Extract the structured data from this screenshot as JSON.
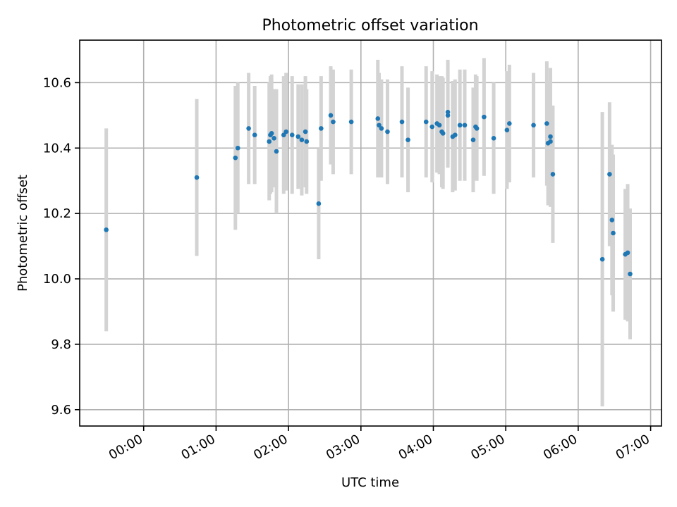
{
  "chart_data": {
    "type": "scatter",
    "title": "Photometric offset variation",
    "xlabel": "UTC time",
    "ylabel": "Photometric offset",
    "x_axis_type": "time",
    "xlim": [
      "23:07",
      "07:09"
    ],
    "ylim": [
      9.55,
      10.73
    ],
    "xticks": [
      "00:00",
      "01:00",
      "02:00",
      "03:00",
      "04:00",
      "05:00",
      "06:00",
      "07:00"
    ],
    "yticks": [
      9.6,
      9.8,
      10.0,
      10.2,
      10.4,
      10.6
    ],
    "ytick_labels": [
      "9.6",
      "9.8",
      "10.0",
      "10.2",
      "10.4",
      "10.6"
    ],
    "grid": true,
    "point_color": "#1f77b4",
    "errorbar_color": "#d3d3d3",
    "series": [
      {
        "x": [
          "23:29",
          "00:44",
          "01:16",
          "01:18",
          "01:27",
          "01:32",
          "01:44",
          "01:45",
          "01:46",
          "01:48",
          "01:50",
          "01:56",
          "01:58",
          "02:03",
          "02:08",
          "02:11",
          "02:14",
          "02:15",
          "02:25",
          "02:27",
          "02:35",
          "02:37",
          "02:52",
          "03:14",
          "03:15",
          "03:17",
          "03:22",
          "03:34",
          "03:39",
          "03:54",
          "03:59",
          "04:03",
          "04:05",
          "04:07",
          "04:08",
          "04:12",
          "04:12",
          "04:16",
          "04:18",
          "04:22",
          "04:26",
          "04:33",
          "04:35",
          "04:36",
          "04:42",
          "04:50",
          "05:01",
          "05:03",
          "05:23",
          "05:34",
          "05:35",
          "05:37",
          "05:37",
          "05:39",
          "06:20",
          "06:26",
          "06:28",
          "06:29",
          "06:39",
          "06:41",
          "06:43"
        ],
        "y": [
          10.15,
          10.31,
          10.37,
          10.4,
          10.46,
          10.44,
          10.42,
          10.44,
          10.445,
          10.43,
          10.39,
          10.44,
          10.45,
          10.44,
          10.435,
          10.425,
          10.45,
          10.42,
          10.23,
          10.46,
          10.5,
          10.48,
          10.48,
          10.49,
          10.47,
          10.46,
          10.45,
          10.48,
          10.425,
          10.48,
          10.465,
          10.475,
          10.47,
          10.45,
          10.445,
          10.51,
          10.5,
          10.435,
          10.44,
          10.47,
          10.47,
          10.425,
          10.465,
          10.46,
          10.495,
          10.43,
          10.455,
          10.475,
          10.47,
          10.475,
          10.415,
          10.42,
          10.435,
          10.32,
          10.06,
          10.32,
          10.18,
          10.14,
          10.075,
          10.08,
          10.015
        ],
        "yerr": [
          0.31,
          0.24,
          0.22,
          0.2,
          0.17,
          0.15,
          0.18,
          0.18,
          0.18,
          0.15,
          0.19,
          0.18,
          0.18,
          0.18,
          0.16,
          0.17,
          0.17,
          0.16,
          0.17,
          0.16,
          0.15,
          0.16,
          0.16,
          0.18,
          0.16,
          0.15,
          0.16,
          0.17,
          0.16,
          0.17,
          0.17,
          0.15,
          0.15,
          0.17,
          0.17,
          0.16,
          0.16,
          0.17,
          0.17,
          0.17,
          0.17,
          0.16,
          0.16,
          0.16,
          0.18,
          0.17,
          0.18,
          0.18,
          0.16,
          0.19,
          0.19,
          0.2,
          0.21,
          0.21,
          0.45,
          0.22,
          0.23,
          0.24,
          0.2,
          0.21,
          0.2
        ]
      }
    ]
  }
}
